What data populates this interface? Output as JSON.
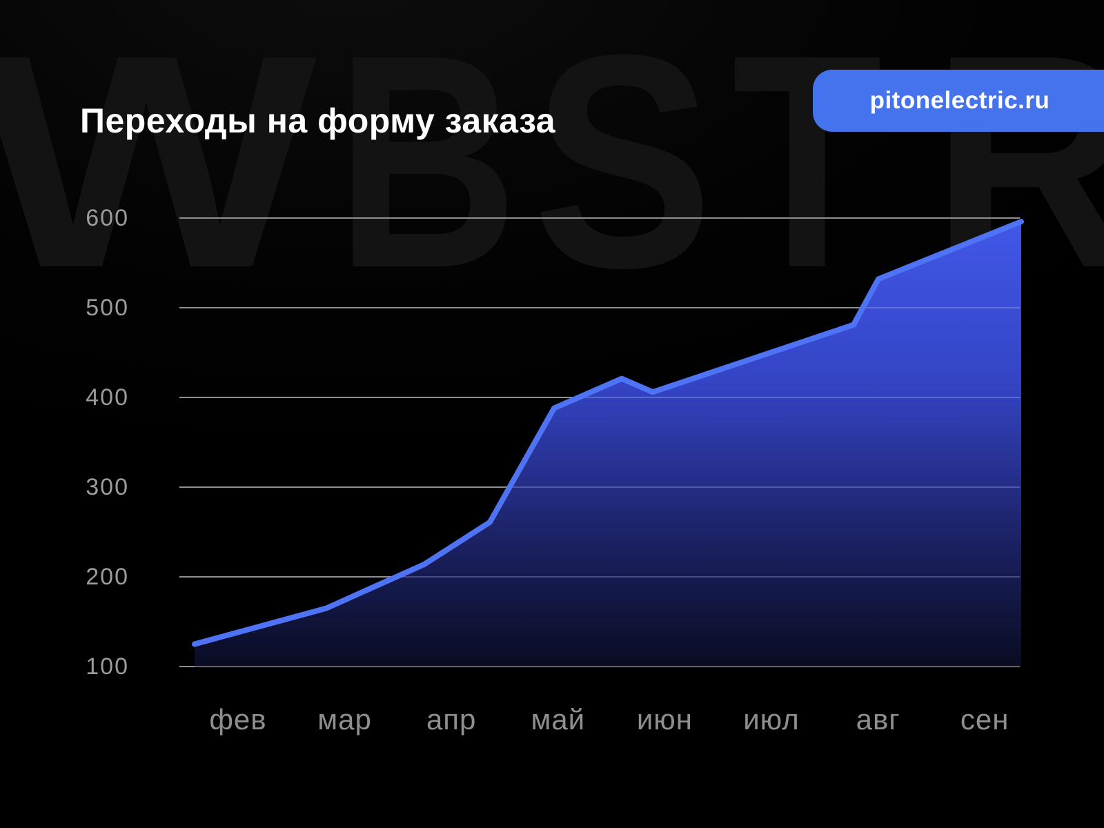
{
  "title": "Переходы на форму заказа",
  "badge": {
    "label": "pitonelectric.ru",
    "color": "#4573ee"
  },
  "watermark": {
    "text": "WBSTR",
    "letters": [
      "W",
      "B",
      "S",
      "T",
      "R"
    ]
  },
  "colors": {
    "background": "#000000",
    "accent_blue": "#4573ee",
    "line_blue": "#4f73f5",
    "grid_gray": "#8f8f8f",
    "y_label_gray": "#9c9c9c",
    "x_label_gray": "#8f8f8f",
    "watermark_gray": "#131313",
    "title_white": "#ffffff"
  },
  "chart_data": {
    "type": "area",
    "title": "Переходы на форму заказа",
    "categories": [
      "фев",
      "мар",
      "апр",
      "май",
      "июн",
      "июл",
      "авг",
      "сен"
    ],
    "values": [
      140,
      172,
      232,
      389,
      412,
      448,
      530,
      580
    ],
    "ylim": [
      100,
      600
    ],
    "y_ticks": [
      600,
      500,
      400,
      300,
      200,
      100
    ],
    "xlabel": "",
    "ylabel": "",
    "grid": true,
    "legend_position": "none",
    "line_color": "#4f73f5",
    "fill_gradient": [
      "#4158e9",
      "#3343c2",
      "#1b2163",
      "#090c22"
    ],
    "polyline": [
      [
        282,
        125
      ],
      [
        473,
        165
      ],
      [
        615,
        214
      ],
      [
        710,
        261
      ],
      [
        803,
        388
      ],
      [
        901,
        421
      ],
      [
        946,
        406
      ],
      [
        1237,
        481
      ],
      [
        1273,
        532
      ],
      [
        1480,
        596
      ]
    ]
  }
}
